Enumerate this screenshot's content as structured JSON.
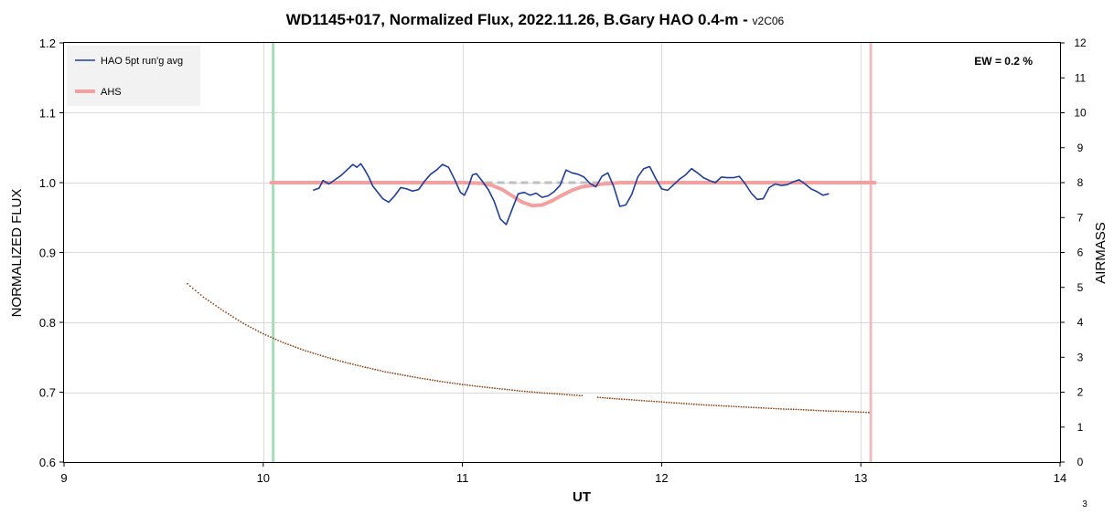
{
  "chart_data": {
    "type": "line",
    "title": "WD1145+017, Normalized Flux, 2022.11.26, B.Gary HAO 0.4-m - ",
    "subtitle": "v2C06",
    "xlabel": "UT",
    "ylabel": "NORMALIZED FLUX",
    "y2label": "AIRMASS",
    "xlim": [
      9,
      14
    ],
    "ylim": [
      0.6,
      1.2
    ],
    "y2lim": [
      0,
      12
    ],
    "x_ticks": [
      "9",
      "10",
      "11",
      "12",
      "13",
      "14"
    ],
    "y_ticks": [
      "0.6",
      "0.7",
      "0.8",
      "0.9",
      "1.0",
      "1.1",
      "1.2"
    ],
    "y2_ticks": [
      "0",
      "1",
      "2",
      "3",
      "4",
      "5",
      "6",
      "7",
      "8",
      "9",
      "10",
      "11",
      "12"
    ],
    "grid": true,
    "legend_position": "top-left",
    "annotation": "EW = 0.2 %",
    "page_number": "3",
    "vertical_markers": [
      {
        "x": 10.05,
        "color": "#a8dbb8"
      },
      {
        "x": 13.05,
        "color": "#eebcbc"
      }
    ],
    "reference_line": {
      "x": [
        10.04,
        13.07
      ],
      "y": 1.0,
      "color": "#bfbfbf"
    },
    "series": [
      {
        "name": "HAO 5pt run'g avg",
        "color": "#1f3e9c",
        "axis": "left",
        "x": [
          10.25,
          10.28,
          10.3,
          10.33,
          10.36,
          10.39,
          10.42,
          10.45,
          10.47,
          10.49,
          10.51,
          10.53,
          10.55,
          10.57,
          10.6,
          10.63,
          10.66,
          10.69,
          10.72,
          10.75,
          10.78,
          10.81,
          10.84,
          10.87,
          10.9,
          10.93,
          10.96,
          10.99,
          11.01,
          11.03,
          11.05,
          11.07,
          11.1,
          11.13,
          11.16,
          11.19,
          11.22,
          11.25,
          11.28,
          11.31,
          11.34,
          11.37,
          11.4,
          11.43,
          11.46,
          11.49,
          11.52,
          11.55,
          11.58,
          11.61,
          11.64,
          11.67,
          11.7,
          11.73,
          11.76,
          11.79,
          11.82,
          11.85,
          11.88,
          11.91,
          11.94,
          11.97,
          12.0,
          12.03,
          12.06,
          12.09,
          12.12,
          12.15,
          12.18,
          12.21,
          12.24,
          12.27,
          12.3,
          12.33,
          12.36,
          12.39,
          12.42,
          12.45,
          12.48,
          12.51,
          12.54,
          12.57,
          12.6,
          12.63,
          12.66,
          12.69,
          12.72,
          12.75,
          12.78,
          12.81,
          12.84
        ],
        "y": [
          0.989,
          0.992,
          1.003,
          0.998,
          1.004,
          1.01,
          1.018,
          1.026,
          1.022,
          1.027,
          1.018,
          1.008,
          0.995,
          0.988,
          0.977,
          0.972,
          0.981,
          0.993,
          0.991,
          0.988,
          0.99,
          1.002,
          1.012,
          1.018,
          1.026,
          1.022,
          1.005,
          0.986,
          0.982,
          0.994,
          1.011,
          1.013,
          1.002,
          0.99,
          0.973,
          0.948,
          0.94,
          0.962,
          0.984,
          0.986,
          0.982,
          0.985,
          0.979,
          0.981,
          0.987,
          0.996,
          1.018,
          1.014,
          1.012,
          1.008,
          0.999,
          0.994,
          1.009,
          1.014,
          0.994,
          0.966,
          0.968,
          0.983,
          1.008,
          1.02,
          1.023,
          1.006,
          0.991,
          0.989,
          0.997,
          1.005,
          1.011,
          1.02,
          1.014,
          1.007,
          1.003,
          1.0,
          1.008,
          1.007,
          1.007,
          1.009,
          0.998,
          0.985,
          0.976,
          0.977,
          0.993,
          0.998,
          0.996,
          0.997,
          1.001,
          1.004,
          0.998,
          0.991,
          0.987,
          0.982,
          0.984
        ]
      },
      {
        "name": "AHS",
        "color": "#f2a0a0",
        "axis": "left",
        "x": [
          10.04,
          10.5,
          11.0,
          11.1,
          11.15,
          11.2,
          11.25,
          11.3,
          11.35,
          11.4,
          11.45,
          11.5,
          11.55,
          11.6,
          11.7,
          11.8,
          12.0,
          12.5,
          13.07
        ],
        "y": [
          1.0,
          1.0,
          1.0,
          0.999,
          0.996,
          0.99,
          0.981,
          0.972,
          0.967,
          0.968,
          0.974,
          0.982,
          0.989,
          0.994,
          0.998,
          1.0,
          1.0,
          1.0,
          1.0
        ]
      },
      {
        "name": "Airmass",
        "color": "#8b4513",
        "axis": "right",
        "x": [
          9.62,
          9.7,
          9.8,
          9.9,
          10.0,
          10.1,
          10.2,
          10.3,
          10.4,
          10.5,
          10.6,
          10.7,
          10.8,
          10.9,
          11.0,
          11.1,
          11.2,
          11.3,
          11.4,
          11.5,
          11.6,
          11.68,
          11.8,
          11.9,
          12.0,
          12.1,
          12.2,
          12.3,
          12.4,
          12.5,
          12.6,
          12.7,
          12.8,
          12.9,
          13.0,
          13.04
        ],
        "y": [
          5.1,
          4.72,
          4.33,
          3.97,
          3.67,
          3.42,
          3.21,
          3.03,
          2.87,
          2.73,
          2.6,
          2.49,
          2.39,
          2.3,
          2.22,
          2.15,
          2.09,
          2.03,
          1.98,
          1.94,
          1.9,
          1.85,
          1.8,
          1.76,
          1.72,
          1.68,
          1.64,
          1.61,
          1.58,
          1.55,
          1.52,
          1.5,
          1.47,
          1.45,
          1.43,
          1.42
        ]
      }
    ]
  }
}
